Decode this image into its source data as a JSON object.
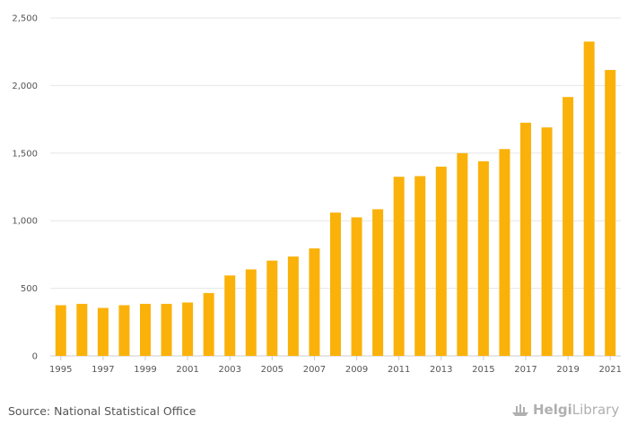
{
  "chart_data": {
    "type": "bar",
    "categories": [
      "1995",
      "1996",
      "1997",
      "1998",
      "1999",
      "2000",
      "2001",
      "2002",
      "2003",
      "2004",
      "2005",
      "2006",
      "2007",
      "2008",
      "2009",
      "2010",
      "2011",
      "2012",
      "2013",
      "2014",
      "2015",
      "2016",
      "2017",
      "2018",
      "2019",
      "2020",
      "2021"
    ],
    "values": [
      375,
      385,
      355,
      375,
      385,
      385,
      395,
      465,
      595,
      640,
      705,
      735,
      795,
      1060,
      1025,
      1085,
      1325,
      1330,
      1400,
      1500,
      1440,
      1530,
      1725,
      1690,
      1915,
      2325,
      2115
    ],
    "x_tick_labels": [
      "1995",
      "1997",
      "1999",
      "2001",
      "2003",
      "2005",
      "2007",
      "2009",
      "2011",
      "2013",
      "2015",
      "2017",
      "2019",
      "2021"
    ],
    "y_ticks": [
      0,
      500,
      1000,
      1500,
      2000,
      2500
    ],
    "y_tick_labels": [
      "0",
      "500",
      "1,000",
      "1,500",
      "2,000",
      "2,500"
    ],
    "ylim": [
      0,
      2500
    ],
    "bar_color": "#fab20a",
    "grid": true,
    "title": "",
    "xlabel": "",
    "ylabel": ""
  },
  "footer": {
    "source_text": "Source: National Statistical Office",
    "logo_part1": "Helgi",
    "logo_part2": "Library",
    "logo_icon": "ship-icon"
  }
}
